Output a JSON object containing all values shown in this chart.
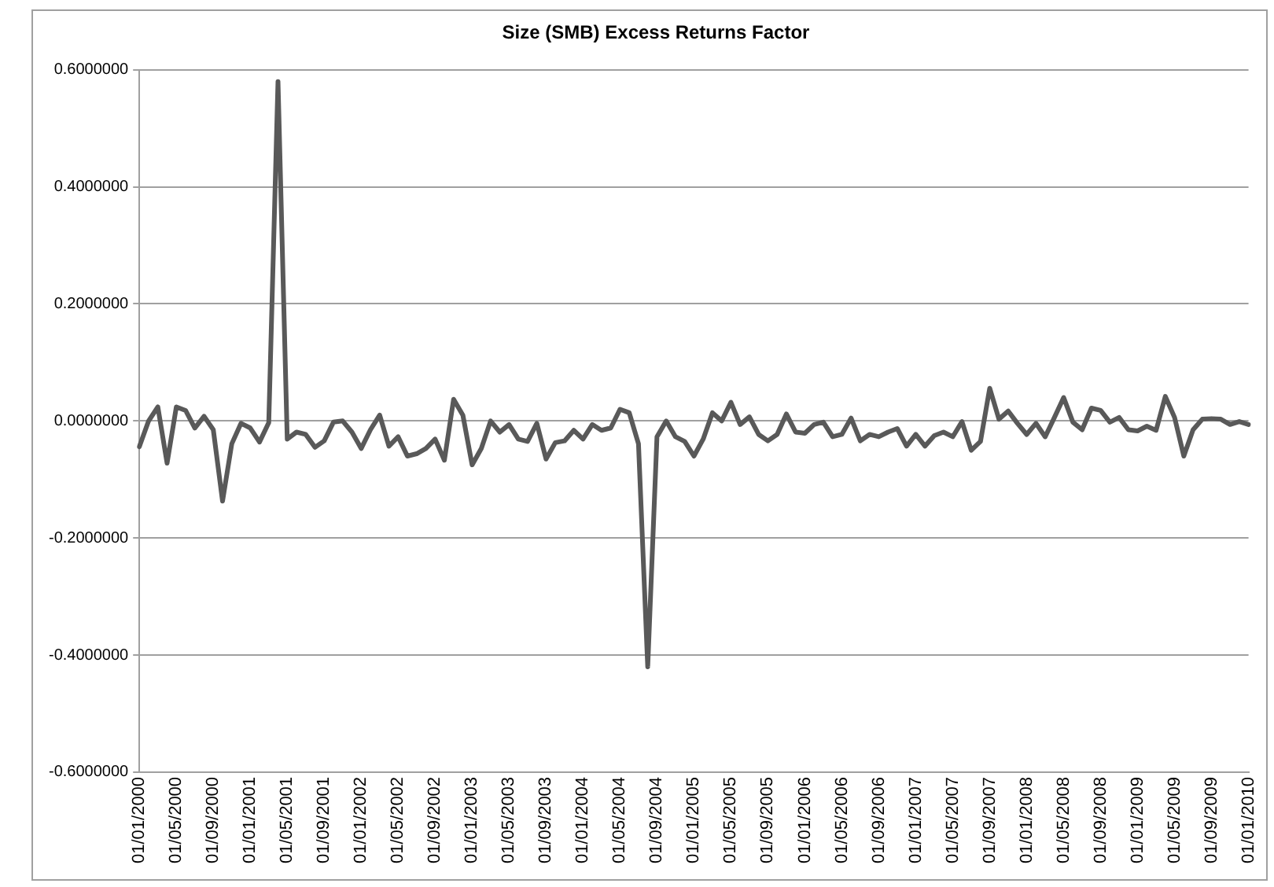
{
  "chart_data": {
    "type": "line",
    "title": "Size (SMB) Excess Returns Factor",
    "categories": [
      "01/01/2000",
      null,
      null,
      null,
      "01/05/2000",
      null,
      null,
      null,
      "01/09/2000",
      null,
      null,
      null,
      "01/01/2001",
      null,
      null,
      null,
      "01/05/2001",
      null,
      null,
      null,
      "01/09/2001",
      null,
      null,
      null,
      "01/01/2002",
      null,
      null,
      null,
      "01/05/2002",
      null,
      null,
      null,
      "01/09/2002",
      null,
      null,
      null,
      "01/01/2003",
      null,
      null,
      null,
      "01/05/2003",
      null,
      null,
      null,
      "01/09/2003",
      null,
      null,
      null,
      "01/01/2004",
      null,
      null,
      null,
      "01/05/2004",
      null,
      null,
      null,
      "01/09/2004",
      null,
      null,
      null,
      "01/01/2005",
      null,
      null,
      null,
      "01/05/2005",
      null,
      null,
      null,
      "01/09/2005",
      null,
      null,
      null,
      "01/01/2006",
      null,
      null,
      null,
      "01/05/2006",
      null,
      null,
      null,
      "01/09/2006",
      null,
      null,
      null,
      "01/01/2007",
      null,
      null,
      null,
      "01/05/2007",
      null,
      null,
      null,
      "01/09/2007",
      null,
      null,
      null,
      "01/01/2008",
      null,
      null,
      null,
      "01/05/2008",
      null,
      null,
      null,
      "01/09/2008",
      null,
      null,
      null,
      "01/01/2009",
      null,
      null,
      null,
      "01/05/2009",
      null,
      null,
      null,
      "01/09/2009",
      null,
      null,
      null,
      "01/01/2010"
    ],
    "series": [
      {
        "color": "#595959",
        "values": [
          -0.044,
          0.0,
          0.024,
          -0.072,
          0.024,
          0.018,
          -0.012,
          0.008,
          -0.015,
          -0.137,
          -0.039,
          -0.004,
          -0.012,
          -0.036,
          -0.003,
          0.58,
          -0.031,
          -0.019,
          -0.023,
          -0.045,
          -0.034,
          -0.002,
          0.0,
          -0.019,
          -0.047,
          -0.015,
          0.01,
          -0.043,
          -0.027,
          -0.06,
          -0.056,
          -0.047,
          -0.031,
          -0.067,
          0.037,
          0.01,
          -0.075,
          -0.047,
          0.0,
          -0.019,
          -0.006,
          -0.031,
          -0.035,
          -0.004,
          -0.065,
          -0.037,
          -0.034,
          -0.016,
          -0.031,
          -0.006,
          -0.016,
          -0.012,
          0.02,
          0.014,
          -0.039,
          -0.42,
          -0.027,
          0.0,
          -0.027,
          -0.035,
          -0.06,
          -0.031,
          0.014,
          0.0,
          0.032,
          -0.006,
          0.007,
          -0.023,
          -0.034,
          -0.023,
          0.012,
          -0.019,
          -0.021,
          -0.006,
          -0.002,
          -0.027,
          -0.023,
          0.005,
          -0.034,
          -0.023,
          -0.027,
          -0.019,
          -0.013,
          -0.043,
          -0.023,
          -0.043,
          -0.025,
          -0.019,
          -0.027,
          -0.001,
          -0.05,
          -0.035,
          0.056,
          0.003,
          0.017,
          -0.004,
          -0.023,
          -0.004,
          -0.027,
          0.006,
          0.04,
          -0.002,
          -0.015,
          0.022,
          0.018,
          -0.002,
          0.006,
          -0.015,
          -0.017,
          -0.009,
          -0.016,
          0.042,
          0.006,
          -0.06,
          -0.015,
          0.003,
          0.004,
          0.003,
          -0.006,
          -0.001,
          -0.006
        ]
      }
    ],
    "ylim": [
      -0.6,
      0.6
    ],
    "yticks": [
      {
        "value": -0.6,
        "label": "-0.6000000"
      },
      {
        "value": -0.4,
        "label": "-0.4000000"
      },
      {
        "value": -0.2,
        "label": "-0.2000000"
      },
      {
        "value": 0,
        "label": "0.0000000"
      },
      {
        "value": 0.2,
        "label": "0.2000000"
      },
      {
        "value": 0.4,
        "label": "0.4000000"
      },
      {
        "value": 0.6,
        "label": "0.6000000"
      }
    ],
    "grid": "y",
    "legend": false
  }
}
